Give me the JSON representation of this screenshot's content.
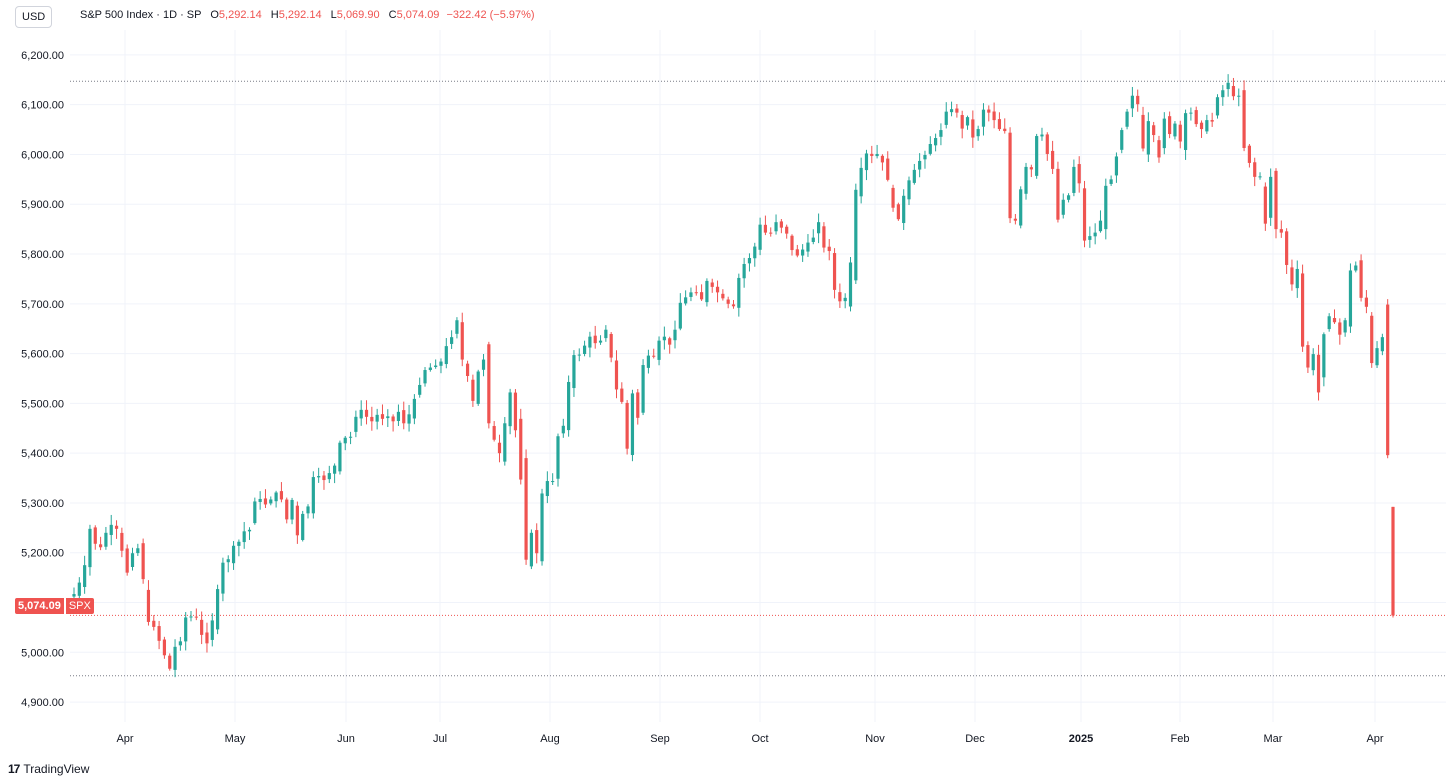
{
  "header": {
    "currency_button": "USD",
    "symbol_name": "S&P 500 Index · 1D · SP",
    "open_label": "O",
    "open_value": "5,292.14",
    "high_label": "H",
    "high_value": "5,292.14",
    "low_label": "L",
    "low_value": "5,069.90",
    "close_label": "C",
    "close_value": "5,074.09",
    "change": "−322.42 (−5.97%)"
  },
  "last_price": {
    "value": "5,074.09",
    "symbol": "SPX"
  },
  "branding": {
    "logo_text": "TradingView",
    "logo_mark": "17"
  },
  "chart_data": {
    "type": "candlestick",
    "title": "S&P 500 Index · 1D · SP",
    "currency": "USD",
    "y_axis": {
      "ylim": [
        4860,
        6250
      ],
      "ticks": [
        "6,200.00",
        "6,100.00",
        "6,000.00",
        "5,900.00",
        "5,800.00",
        "5,700.00",
        "5,600.00",
        "5,500.00",
        "5,400.00",
        "5,300.00",
        "5,200.00",
        "5,100.00",
        "5,000.00",
        "4,900.00"
      ],
      "position": "left"
    },
    "x_axis": {
      "ticks": [
        "Apr",
        "May",
        "Jun",
        "Jul",
        "Aug",
        "Sep",
        "Oct",
        "Nov",
        "Dec",
        "2025",
        "Feb",
        "Mar",
        "Apr"
      ],
      "bold_ticks": [
        "2025"
      ]
    },
    "reference_lines": [
      {
        "name": "period-high",
        "y": 6147,
        "color": "#787b86",
        "style": "dotted"
      },
      {
        "name": "period-low",
        "y": 4953,
        "color": "#787b86",
        "style": "dotted"
      },
      {
        "name": "last-price",
        "y": 5074.09,
        "color": "#ef5350",
        "style": "dotted"
      }
    ],
    "colors": {
      "up": "#26a69a",
      "down": "#ef5350",
      "grid": "#f0f3fa"
    },
    "grid": true,
    "closes": [
      5117,
      5140,
      5175,
      5248,
      5218,
      5211,
      5240,
      5256,
      5248,
      5204,
      5160,
      5199,
      5209,
      5147,
      5061,
      5051,
      5023,
      4994,
      4967,
      5011,
      5022,
      5070,
      5072,
      5070,
      5035,
      5018,
      5064,
      5127,
      5180,
      5187,
      5214,
      5222,
      5243,
      5246,
      5303,
      5308,
      5297,
      5307,
      5321,
      5307,
      5267,
      5306,
      5235,
      5278,
      5293,
      5352,
      5354,
      5346,
      5360,
      5375,
      5421,
      5431,
      5433,
      5473,
      5487,
      5473,
      5464,
      5477,
      5469,
      5474,
      5464,
      5483,
      5460,
      5478,
      5509,
      5537,
      5567,
      5572,
      5576,
      5584,
      5615,
      5633,
      5667,
      5588,
      5555,
      5505,
      5564,
      5588,
      5460,
      5427,
      5400,
      5460,
      5522,
      5446,
      5347,
      5186,
      5240,
      5199,
      5319,
      5344,
      5344,
      5434,
      5455,
      5543,
      5597,
      5598,
      5616,
      5634,
      5621,
      5626,
      5648,
      5592,
      5528,
      5503,
      5409,
      5520,
      5471,
      5577,
      5596,
      5595,
      5626,
      5634,
      5618,
      5648,
      5702,
      5713,
      5723,
      5722,
      5709,
      5746,
      5734,
      5723,
      5711,
      5700,
      5695,
      5752,
      5780,
      5792,
      5815,
      5859,
      5843,
      5842,
      5864,
      5853,
      5841,
      5808,
      5797,
      5809,
      5823,
      5833,
      5864,
      5813,
      5806,
      5728,
      5705,
      5712,
      5783,
      5929,
      5973,
      6002,
      5997,
      6001,
      5984,
      5949,
      5893,
      5870,
      5917,
      5948,
      5969,
      5987,
      5999,
      6021,
      6033,
      6049,
      6086,
      6091,
      6084,
      6052,
      6075,
      6034,
      6051,
      6090,
      6084,
      6069,
      6051,
      6047,
      5872,
      5867,
      5930,
      5975,
      5970,
      6037,
      6040,
      6001,
      5971,
      5869,
      5909,
      5918,
      5975,
      5942,
      5827,
      5836,
      5843,
      5867,
      5937,
      5950,
      5996,
      6049,
      6086,
      6118,
      6101,
      6012,
      6067,
      6039,
      5994,
      6072,
      6041,
      6062,
      6026,
      6083,
      6084,
      6061,
      6051,
      6069,
      6066,
      6115,
      6129,
      6144,
      6117,
      6118,
      6013,
      5983,
      5955,
      5956,
      5861,
      5955,
      5850,
      5843,
      5778,
      5739,
      5770,
      5614,
      5572,
      5599,
      5522,
      5639,
      5675,
      5663,
      5638,
      5667,
      5767,
      5777,
      5712,
      5694,
      5581,
      5611,
      5633,
      5396,
      5074
    ]
  }
}
